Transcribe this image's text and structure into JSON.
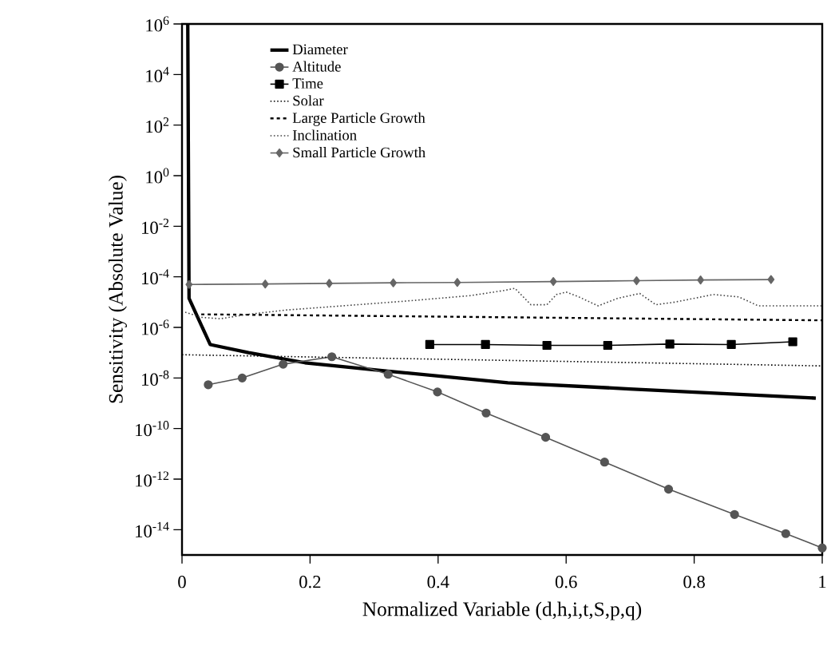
{
  "chart_data": {
    "type": "line",
    "xlabel": "Normalized Variable (d,h,i,t,S,p,q)",
    "ylabel": "Sensitivity (Absolute Value)",
    "log": "y",
    "legend": "top left",
    "xlim": [
      0,
      1
    ],
    "ylim": [
      1e-15,
      1000000.0
    ],
    "xticks": [
      0,
      0.2,
      0.4,
      0.6,
      0.8,
      1
    ],
    "yticks": [
      {
        "value": 1000000.0,
        "label": "10$^{6}$"
      },
      {
        "value": 10000.0,
        "label": "10$^{4}$"
      },
      {
        "value": 100.0,
        "label": "10$^{2}$"
      },
      {
        "value": 1,
        "label": "10$^{0}$"
      },
      {
        "value": 0.01,
        "label": "10$^{-2}$"
      },
      {
        "value": 0.0001,
        "label": "10$^{-4}$"
      },
      {
        "value": 1e-06,
        "label": "10$^{-6}$"
      },
      {
        "value": 1e-08,
        "label": "10$^{-8}$"
      },
      {
        "value": 1e-10,
        "label": "10$^{-10}$"
      },
      {
        "value": 1e-12,
        "label": "10$^{-12}$"
      },
      {
        "value": 1e-14,
        "label": "10$^{-14}$"
      }
    ],
    "series": [
      {
        "name": "Diameter",
        "color": "#000000",
        "marker": "none",
        "line_style": "solid",
        "x": [
          0.009,
          0.011,
          0.044,
          0.104,
          0.192,
          0.319,
          0.509,
          0.699,
          0.99
        ],
        "values": [
          1000000.0,
          1.4e-05,
          2.1e-07,
          1e-07,
          4e-08,
          1.9e-08,
          6.5e-09,
          3.7e-09,
          1.6e-09
        ]
      },
      {
        "name": "Altitude",
        "color": "#555555",
        "marker": "circle",
        "line_style": "solid",
        "x": [
          0.041,
          0.094,
          0.158,
          0.234,
          0.322,
          0.399,
          0.475,
          0.568,
          0.66,
          0.76,
          0.863,
          0.943,
          1.0
        ],
        "values": [
          5.4e-09,
          1e-08,
          3.5e-08,
          6.9e-08,
          1.4e-08,
          2.8e-09,
          4.1e-10,
          4.5e-11,
          4.7e-12,
          4e-13,
          4e-14,
          7e-15,
          1.9e-15
        ]
      },
      {
        "name": "Time",
        "color": "#000000",
        "marker": "square",
        "line_style": "solid",
        "x": [
          0.387,
          0.474,
          0.57,
          0.665,
          0.762,
          0.858,
          0.954
        ],
        "values": [
          2.1e-07,
          2.1e-07,
          1.95e-07,
          1.95e-07,
          2.2e-07,
          2.1e-07,
          2.7e-07
        ]
      },
      {
        "name": "Solar",
        "color": "#000000",
        "marker": "none",
        "line_style": "dotted",
        "x": [
          0,
          1
        ],
        "values": [
          8.3e-08,
          3e-08
        ]
      },
      {
        "name": "Large Particle Growth",
        "color": "#000000",
        "marker": "none",
        "line_style": "dashed",
        "x": [
          0.03,
          1
        ],
        "values": [
          3.3e-06,
          1.9e-06
        ]
      },
      {
        "name": "Inclination",
        "color": "#444444",
        "marker": "none",
        "line_style": "dotted",
        "x": [
          0.005,
          0.03,
          0.06,
          0.1,
          0.16,
          0.25,
          0.35,
          0.45,
          0.5,
          0.52,
          0.545,
          0.57,
          0.585,
          0.6,
          0.62,
          0.65,
          0.68,
          0.715,
          0.74,
          0.77,
          0.83,
          0.87,
          0.9,
          1.0
        ],
        "values": [
          4e-06,
          2.5e-06,
          2.2e-06,
          3.2e-06,
          4.8e-06,
          7.1e-06,
          1.1e-05,
          1.8e-05,
          2.8e-05,
          3.5e-05,
          7.9e-06,
          7.9e-06,
          2e-05,
          2.5e-05,
          1.6e-05,
          7.1e-06,
          1.4e-05,
          2.2e-05,
          7.9e-06,
          1e-05,
          2e-05,
          1.6e-05,
          7.1e-06,
          7.1e-06
        ]
      },
      {
        "name": "Small Particle Growth",
        "color": "#666666",
        "marker": "diamond",
        "line_style": "solid",
        "x": [
          0.011,
          0.13,
          0.23,
          0.33,
          0.43,
          0.58,
          0.71,
          0.81,
          0.92
        ],
        "values": [
          5e-05,
          5.2e-05,
          5.5e-05,
          5.8e-05,
          6e-05,
          6.5e-05,
          7e-05,
          7.5e-05,
          7.8e-05
        ]
      }
    ]
  }
}
